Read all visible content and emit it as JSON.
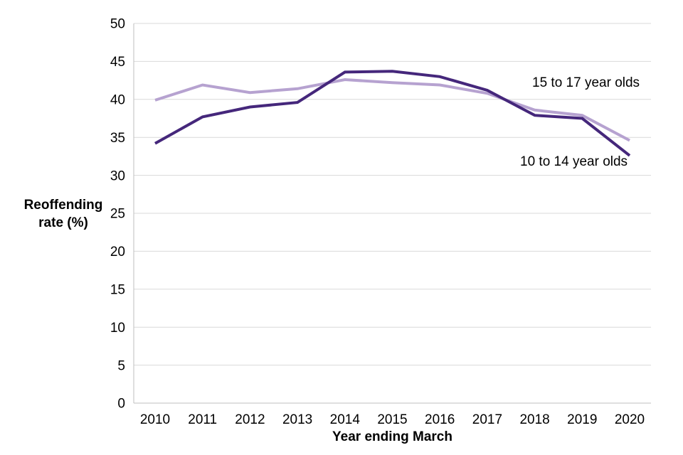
{
  "chart_data": {
    "type": "line",
    "title": "",
    "xlabel": "Year ending March",
    "ylabel": "Reoffending\nrate (%)",
    "categories": [
      "2010",
      "2011",
      "2012",
      "2013",
      "2014",
      "2015",
      "2016",
      "2017",
      "2018",
      "2019",
      "2020"
    ],
    "series": [
      {
        "name": "15 to 17 year olds",
        "color": "#b6a2d0",
        "values": [
          39.9,
          41.9,
          40.9,
          41.4,
          42.6,
          42.2,
          41.9,
          40.8,
          38.6,
          37.9,
          34.6
        ]
      },
      {
        "name": "10 to 14 year olds",
        "color": "#45277b",
        "values": [
          34.2,
          37.7,
          39.0,
          39.6,
          43.6,
          43.7,
          43.0,
          41.2,
          37.9,
          37.5,
          32.6
        ]
      }
    ],
    "ylim": [
      0,
      50
    ],
    "ytick_step": 5,
    "grid": true,
    "legend_position": "inline-labels",
    "annotations": [
      {
        "text": "15 to 17 year olds"
      },
      {
        "text": "10 to 14 year olds"
      }
    ]
  },
  "colors": {
    "gridline": "#d9d9d9",
    "axis_line": "#bfbfbf",
    "text": "#000000",
    "background": "#ffffff"
  }
}
